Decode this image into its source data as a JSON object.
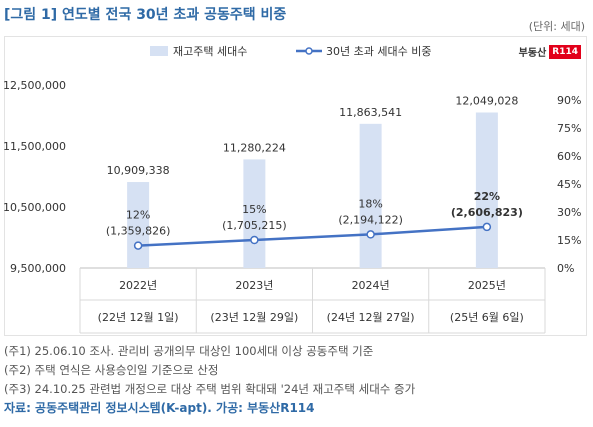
{
  "title": "[그림 1] 연도별 전국 30년 초과 공동주택 비중",
  "unit": "(단위: 세대)",
  "logo": {
    "text": "부동산",
    "badge": "R114"
  },
  "chart_data": {
    "type": "bar",
    "categories": [
      "2022년",
      "2023년",
      "2024년",
      "2025년"
    ],
    "subcategories": [
      "(22년 12월 1일)",
      "(23년 12월 29일)",
      "(24년 12월 27일)",
      "(25년 6월 6일)"
    ],
    "series": [
      {
        "name": "재고주택 세대수",
        "type": "bar",
        "axis": "left",
        "values": [
          10909338,
          11280224,
          11863541,
          12049028
        ],
        "labels": [
          "10,909,338",
          "11,280,224",
          "11,863,541",
          "12,049,028"
        ],
        "color": "#d6e1f3"
      },
      {
        "name": "30년 초과 세대수 비중",
        "type": "line",
        "axis": "right",
        "values": [
          12,
          15,
          18,
          22
        ],
        "labels": [
          "12%",
          "15%",
          "18%",
          "22%"
        ],
        "counts": [
          "(1,359,826)",
          "(1,705,215)",
          "(2,194,122)",
          "(2,606,823)"
        ],
        "color": "#4472c4"
      }
    ],
    "yleft": {
      "ticks": [
        "12,500,000",
        "11,500,000",
        "10,500,000",
        "9,500,000"
      ],
      "range": [
        9500000,
        12500000
      ]
    },
    "yright": {
      "ticks": [
        "90%",
        "75%",
        "60%",
        "45%",
        "30%",
        "15%",
        "0%"
      ],
      "range": [
        0,
        90
      ]
    },
    "legend": "top"
  },
  "notes": [
    "(주1) 25.06.10 조사. 관리비 공개의무 대상인 100세대 이상 공동주택 기준",
    "(주2) 주택 연식은 사용승인일 기준으로 산정",
    "(주3) 24.10.25 관련법 개정으로 대상 주택 범위 확대돼 '24년 재고주택 세대수 증가"
  ],
  "source": "자료: 공동주택관리 정보시스템(K-apt). 가공: 부동산R114"
}
